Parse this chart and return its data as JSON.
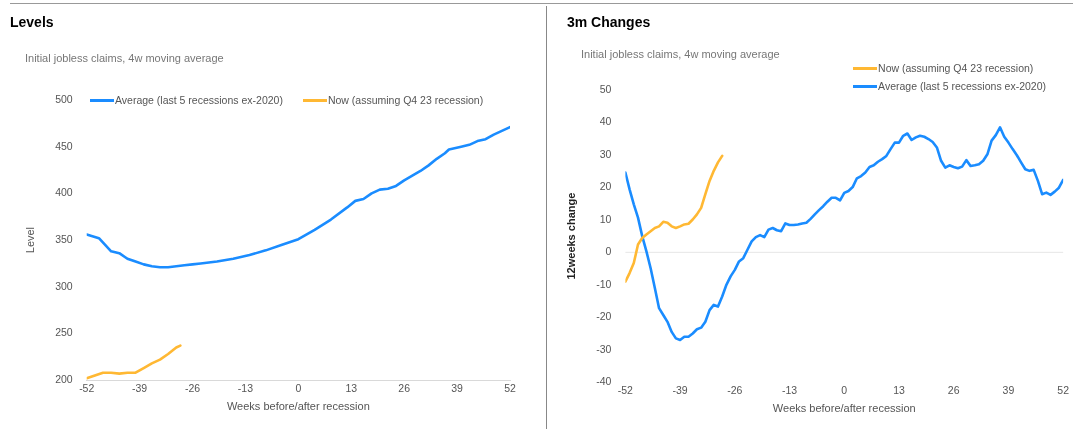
{
  "chart_data": [
    {
      "type": "line",
      "title": "Levels",
      "subtitle": "Initial jobless claims, 4w moving average",
      "xlabel": "Weeks before/after recession",
      "ylabel": "Level",
      "xlim": [
        -52,
        52
      ],
      "xticks": [
        -52,
        -39,
        -26,
        -13,
        0,
        13,
        26,
        39,
        52
      ],
      "ylim": [
        200,
        500
      ],
      "yticks": [
        200,
        250,
        300,
        350,
        400,
        450,
        500
      ],
      "grid": false,
      "legend": "top",
      "marker": "none",
      "line_style": "solid",
      "series": [
        {
          "name": "Average (last 5 recessions ex-2020)",
          "color": "#1a8cff",
          "x": [
            -52,
            -49,
            -46,
            -44,
            -42,
            -40,
            -38,
            -36,
            -34,
            -32,
            -30,
            -28,
            -26,
            -24,
            -20,
            -16,
            -12,
            -8,
            -4,
            0,
            4,
            8,
            12,
            14,
            16,
            18,
            20,
            22,
            24,
            26,
            28,
            30,
            32,
            34,
            36,
            37,
            40,
            42,
            44,
            46,
            48,
            50,
            52
          ],
          "values": [
            356,
            352,
            338,
            336,
            330,
            327,
            324,
            322,
            321,
            321,
            322,
            323,
            324,
            325,
            327,
            330,
            334,
            339,
            345,
            351,
            361,
            372,
            385,
            392,
            394,
            400,
            404,
            405,
            408,
            414,
            419,
            424,
            430,
            437,
            443,
            447,
            450,
            452,
            456,
            458,
            463,
            467,
            471
          ]
        },
        {
          "name": "Now (assuming Q4 23 recession)",
          "color": "#ffb833",
          "x": [
            -52,
            -50,
            -48,
            -46,
            -44,
            -42,
            -40,
            -38,
            -36,
            -34,
            -32,
            -30,
            -29
          ],
          "values": [
            202,
            205,
            208,
            208,
            207,
            208,
            208,
            213,
            218,
            222,
            228,
            235,
            237
          ]
        }
      ]
    },
    {
      "type": "line",
      "title": "3m Changes",
      "subtitle": "Initial jobless claims, 4w moving average",
      "xlabel": "Weeks before/after recession",
      "ylabel": "12weeks change",
      "xlim": [
        -52,
        52
      ],
      "xticks": [
        -52,
        -39,
        -26,
        -13,
        0,
        13,
        26,
        39,
        52
      ],
      "ylim": [
        -40,
        50
      ],
      "yticks": [
        -40,
        -30,
        -20,
        -10,
        0,
        10,
        20,
        30,
        40,
        50
      ],
      "grid": false,
      "legend": "top right",
      "marker": "none",
      "line_style": "solid",
      "ref_lines": [
        {
          "axis": "y",
          "value": 0,
          "label": null,
          "color": "#e6e6e6"
        }
      ],
      "series": [
        {
          "name": "Now (assuming Q4 23 recession)",
          "color": "#ffb833",
          "x": [
            -52,
            -51,
            -50,
            -49,
            -48,
            -47,
            -46,
            -45,
            -44,
            -43,
            -42,
            -41,
            -40,
            -39,
            -38,
            -37,
            -36,
            -35,
            -34,
            -33,
            -32,
            -31,
            -30,
            -29
          ],
          "values": [
            -9,
            -6.4,
            -3.3,
            2.4,
            4.4,
            5.5,
            6.5,
            7.5,
            8,
            9.4,
            9.1,
            8,
            7.5,
            8,
            8.6,
            8.8,
            10.1,
            11.7,
            13.7,
            17.9,
            22,
            25.1,
            27.7,
            29.7
          ]
        },
        {
          "name": "Average (last 5 recessions ex-2020)",
          "color": "#1a8cff",
          "x": [
            -52,
            -51,
            -50,
            -49,
            -48,
            -47,
            -46,
            -45,
            -44,
            -43,
            -42,
            -41,
            -40,
            -39,
            -38,
            -37,
            -36,
            -35,
            -34,
            -33,
            -32,
            -31,
            -30,
            -29,
            -28,
            -27,
            -26,
            -25,
            -24,
            -23,
            -22,
            -21,
            -20,
            -19,
            -18,
            -17,
            -16,
            -15,
            -14,
            -13,
            -12,
            -11,
            -10,
            -9,
            -8,
            -7,
            -6,
            -5,
            -4,
            -3,
            -2,
            -1,
            0,
            1,
            2,
            3,
            4,
            5,
            6,
            7,
            8,
            9,
            10,
            11,
            12,
            13,
            14,
            15,
            16,
            17,
            18,
            19,
            20,
            21,
            22,
            23,
            24,
            25,
            26,
            27,
            28,
            29,
            30,
            31,
            32,
            33,
            34,
            35,
            36,
            37,
            38,
            39,
            40,
            41,
            42,
            43,
            44,
            45,
            46,
            47,
            48,
            49,
            50,
            51,
            52
          ],
          "values": [
            24.6,
            19.4,
            14.8,
            10.7,
            5,
            0.3,
            -4.9,
            -11,
            -17.2,
            -19.3,
            -21.4,
            -24.5,
            -26.5,
            -27,
            -26,
            -26,
            -25,
            -23.7,
            -23.2,
            -21.4,
            -17.8,
            -16.2,
            -16.7,
            -13.6,
            -10,
            -7.4,
            -5.4,
            -2.8,
            -1.8,
            0.8,
            3.4,
            4.7,
            5.3,
            4.7,
            7,
            7.5,
            6.8,
            6.5,
            8.9,
            8.4,
            8.4,
            8.6,
            8.9,
            9.1,
            10.3,
            11.7,
            13,
            14.2,
            15.6,
            16.8,
            16.8,
            16,
            18.3,
            18.9,
            20.1,
            22.8,
            23.5,
            24.6,
            26.3,
            26.8,
            27.9,
            28.7,
            29.7,
            31.8,
            33.8,
            33.8,
            35.9,
            36.6,
            34.6,
            35.4,
            35.9,
            35.6,
            34.9,
            34,
            32.3,
            28.2,
            26.1,
            26.8,
            26.3,
            25.9,
            26.4,
            28.4,
            26.6,
            26.8,
            27.1,
            28.2,
            30.2,
            34.4,
            36.1,
            38.5,
            35.6,
            33.8,
            31.8,
            29.9,
            27.7,
            25.6,
            25.1,
            25.4,
            22,
            17.9,
            18.4,
            17.7,
            18.7,
            19.9,
            22.3
          ]
        }
      ]
    }
  ]
}
